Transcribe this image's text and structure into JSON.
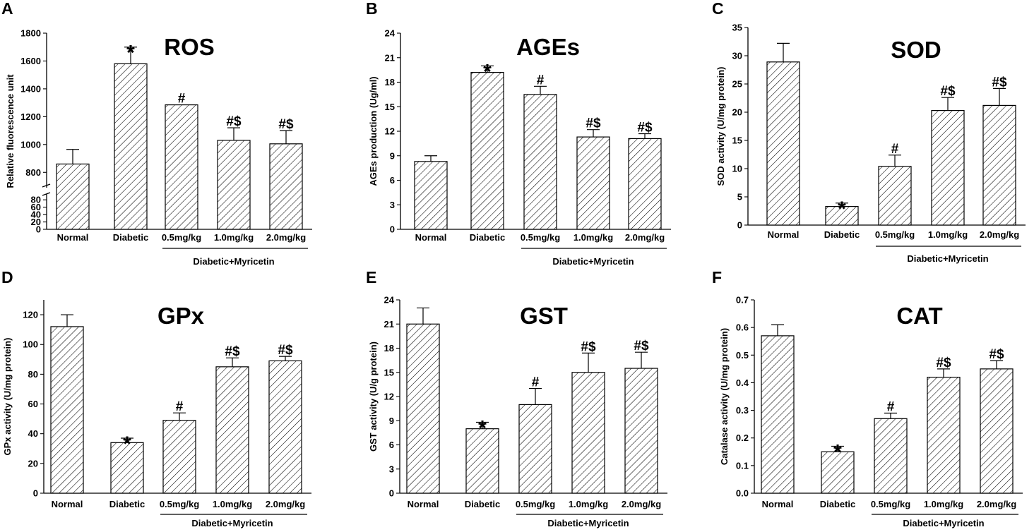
{
  "chart_data": [
    {
      "type": "bar",
      "panel": "A",
      "title": "ROS",
      "ylabel": "Relative fluorescence unit",
      "xlabel": "",
      "categories": [
        "Normal",
        "Diabetic",
        "0.5mg/kg",
        "1.0mg/kg",
        "2.0mg/kg"
      ],
      "group_label": "Diabetic+Myricetin",
      "values": [
        860,
        1580,
        1285,
        1030,
        1005
      ],
      "errors": [
        105,
        120,
        0,
        90,
        95
      ],
      "annotations": [
        "",
        "*",
        "#",
        "#$",
        "#$"
      ],
      "axis_break": true,
      "ylim_lower": [
        0,
        90
      ],
      "ylim_upper": [
        700,
        1800
      ],
      "yticks_lower": [
        0,
        20,
        40,
        60,
        80
      ],
      "yticks_upper": [
        800,
        1000,
        1200,
        1400,
        1600,
        1800
      ],
      "grid": false
    },
    {
      "type": "bar",
      "panel": "B",
      "title": "AGEs",
      "ylabel": "AGEs production (Ug/ml)",
      "xlabel": "",
      "categories": [
        "Normal",
        "Diabetic",
        "0.5mg/kg",
        "1.0mg/kg",
        "2.0mg/kg"
      ],
      "group_label": "Diabetic+Myricetin",
      "values": [
        8.3,
        19.2,
        16.5,
        11.3,
        11.1
      ],
      "errors": [
        0.7,
        0.8,
        1.0,
        0.9,
        0.6
      ],
      "annotations": [
        "",
        "*",
        "#",
        "#$",
        "#$"
      ],
      "ylim": [
        0,
        24
      ],
      "yticks": [
        0,
        3,
        6,
        9,
        12,
        15,
        18,
        21,
        24
      ],
      "grid": false
    },
    {
      "type": "bar",
      "panel": "C",
      "title": "SOD",
      "ylabel": "SOD activity (U/mg protein)",
      "xlabel": "",
      "categories": [
        "Normal",
        "Diabetic",
        "0.5mg/kg",
        "1.0mg/kg",
        "2.0mg/kg"
      ],
      "group_label": "Diabetic+Myricetin",
      "values": [
        28.9,
        3.3,
        10.4,
        20.3,
        21.2
      ],
      "errors": [
        3.3,
        0.6,
        2.0,
        2.3,
        3.0
      ],
      "annotations": [
        "",
        "*",
        "#",
        "#$",
        "#$"
      ],
      "ylim": [
        0,
        35
      ],
      "yticks": [
        0,
        5,
        10,
        15,
        20,
        25,
        30,
        35
      ],
      "grid": false
    },
    {
      "type": "bar",
      "panel": "D",
      "title": "GPx",
      "ylabel": "GPx activity (U/mg protein)",
      "xlabel": "",
      "categories": [
        "Normal",
        "Diabetic",
        "0.5mg/kg",
        "1.0mg/kg",
        "2.0mg/kg"
      ],
      "group_label": "Diabetic+Myricetin",
      "values": [
        112,
        34,
        49,
        85,
        89
      ],
      "errors": [
        8,
        3,
        5,
        6,
        3
      ],
      "annotations": [
        "",
        "*",
        "#",
        "#$",
        "#$"
      ],
      "ylim": [
        0,
        130
      ],
      "yticks": [
        0,
        20,
        40,
        60,
        80,
        100,
        120
      ],
      "grid": false
    },
    {
      "type": "bar",
      "panel": "E",
      "title": "GST",
      "ylabel": "GST activity (U/g protein)",
      "xlabel": "",
      "categories": [
        "Normal",
        "Diabetic",
        "0.5mg/kg",
        "1.0mg/kg",
        "2.0mg/kg"
      ],
      "group_label": "Diabetic+Myricetin",
      "values": [
        21.0,
        8.0,
        11.0,
        15.0,
        15.5
      ],
      "errors": [
        2.0,
        0.8,
        2.0,
        2.4,
        2.0
      ],
      "annotations": [
        "",
        "*",
        "#",
        "#$",
        "#$"
      ],
      "ylim": [
        0,
        24
      ],
      "yticks": [
        0,
        3,
        6,
        9,
        12,
        15,
        18,
        21,
        24
      ],
      "grid": false
    },
    {
      "type": "bar",
      "panel": "F",
      "title": "CAT",
      "ylabel": "Catalase activity (U/mg protein)",
      "xlabel": "",
      "categories": [
        "Normal",
        "Diabetic",
        "0.5mg/kg",
        "1.0mg/kg",
        "2.0mg/kg"
      ],
      "group_label": "Diabetic+Myricetin",
      "values": [
        0.57,
        0.15,
        0.27,
        0.42,
        0.45
      ],
      "errors": [
        0.04,
        0.02,
        0.02,
        0.03,
        0.03
      ],
      "annotations": [
        "",
        "*",
        "#",
        "#$",
        "#$"
      ],
      "ylim": [
        0,
        0.7
      ],
      "yticks": [
        0.0,
        0.1,
        0.2,
        0.3,
        0.4,
        0.5,
        0.6,
        0.7
      ],
      "grid": false
    }
  ]
}
